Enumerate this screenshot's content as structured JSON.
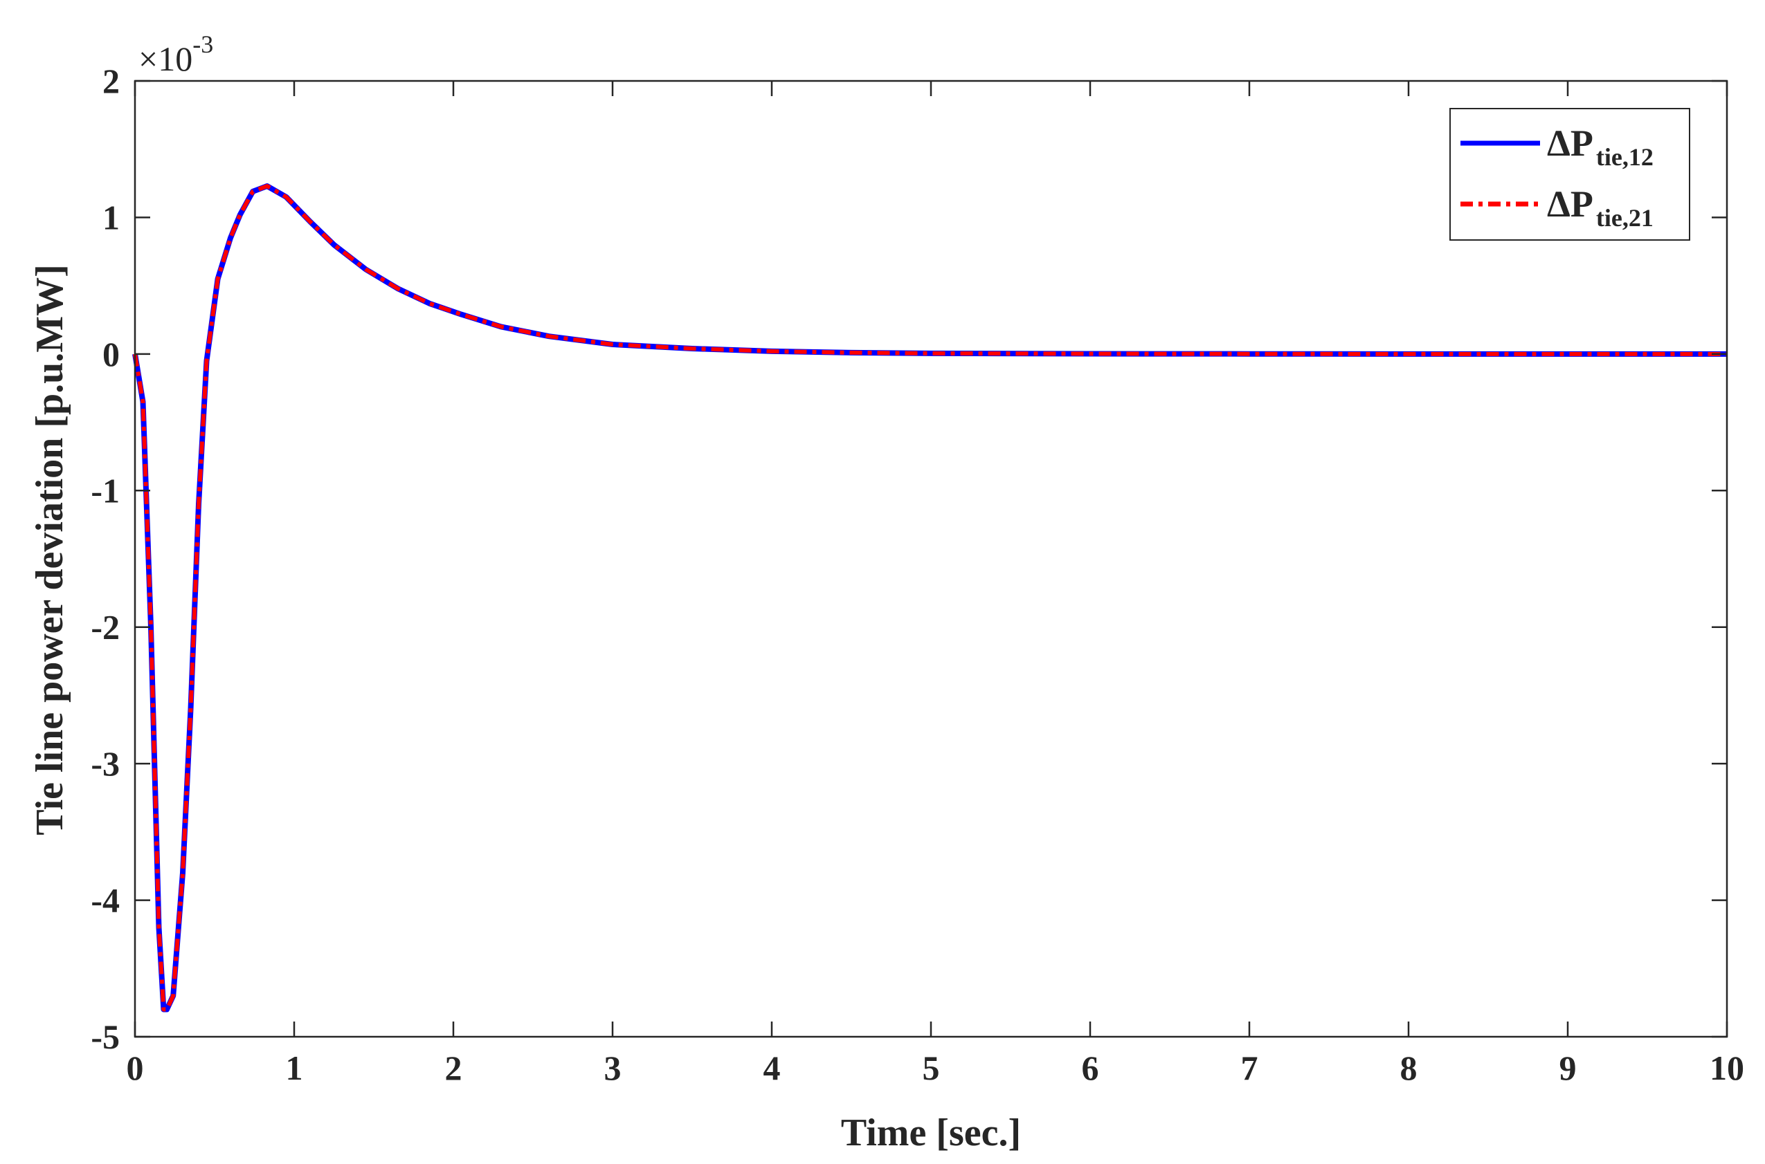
{
  "chart_data": {
    "type": "line",
    "xlabel": "Time [sec.]",
    "ylabel": "Tie line power deviation [p.u.MW]",
    "y_exponent": {
      "base": "10",
      "power": "-3"
    },
    "xlim": [
      0,
      10
    ],
    "ylim": [
      -5,
      2
    ],
    "y_scale_factor": 0.001,
    "x_ticks": [
      "0",
      "1",
      "2",
      "3",
      "4",
      "5",
      "6",
      "7",
      "8",
      "9",
      "10"
    ],
    "y_ticks": [
      "-5",
      "-4",
      "-3",
      "-2",
      "-1",
      "0",
      "1",
      "2"
    ],
    "grid": false,
    "legend_position": "top-right",
    "series": [
      {
        "name": "ΔP tie,12",
        "legend_main": "ΔP",
        "legend_sub": "tie,12",
        "color": "#0000ff",
        "style": "solid",
        "x": [
          0,
          0.05,
          0.1,
          0.15,
          0.18,
          0.2,
          0.24,
          0.3,
          0.35,
          0.4,
          0.45,
          0.52,
          0.6,
          0.66,
          0.74,
          0.83,
          0.95,
          1.1,
          1.25,
          1.45,
          1.65,
          1.85,
          2.05,
          2.3,
          2.6,
          3.0,
          3.5,
          4.0,
          4.5,
          5.0,
          6.0,
          7.0,
          8.0,
          9.0,
          10.0
        ],
        "y": [
          0,
          -0.35,
          -2.0,
          -4.2,
          -4.8,
          -4.8,
          -4.7,
          -3.8,
          -2.6,
          -1.1,
          -0.05,
          0.55,
          0.85,
          1.02,
          1.19,
          1.23,
          1.15,
          0.97,
          0.8,
          0.62,
          0.48,
          0.37,
          0.29,
          0.2,
          0.13,
          0.07,
          0.04,
          0.02,
          0.01,
          0.005,
          0.002,
          0.001,
          0.0,
          0.0,
          0.0
        ]
      },
      {
        "name": "ΔP tie,21",
        "legend_main": "ΔP",
        "legend_sub": "tie,21",
        "color": "#ff0000",
        "style": "dash-dot",
        "x": [
          0,
          0.05,
          0.1,
          0.15,
          0.18,
          0.2,
          0.24,
          0.3,
          0.35,
          0.4,
          0.45,
          0.52,
          0.6,
          0.66,
          0.74,
          0.83,
          0.95,
          1.1,
          1.25,
          1.45,
          1.65,
          1.85,
          2.05,
          2.3,
          2.6,
          3.0,
          3.5,
          4.0,
          4.5,
          5.0,
          6.0,
          7.0,
          8.0,
          9.0,
          10.0
        ],
        "y": [
          0,
          -0.35,
          -2.0,
          -4.2,
          -4.8,
          -4.8,
          -4.7,
          -3.8,
          -2.6,
          -1.1,
          -0.05,
          0.55,
          0.85,
          1.02,
          1.19,
          1.23,
          1.15,
          0.97,
          0.8,
          0.62,
          0.48,
          0.37,
          0.29,
          0.2,
          0.13,
          0.07,
          0.04,
          0.02,
          0.01,
          0.005,
          0.002,
          0.001,
          0.0,
          0.0,
          0.0
        ]
      }
    ]
  }
}
